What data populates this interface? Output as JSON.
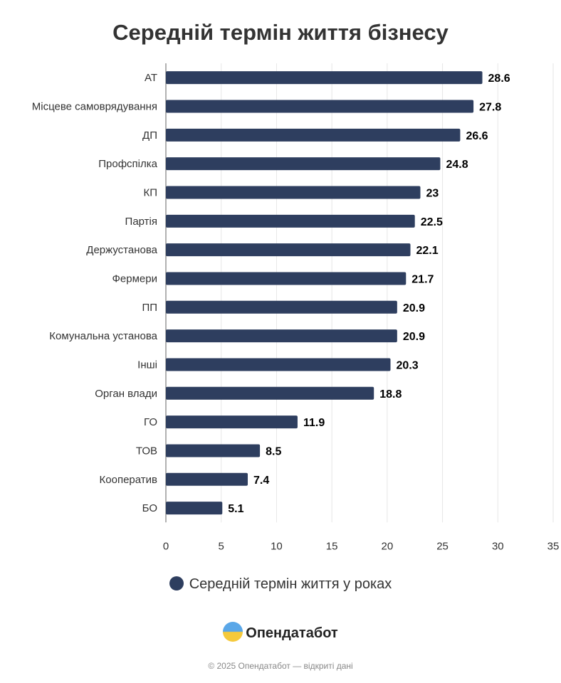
{
  "chart_data": {
    "type": "bar",
    "orientation": "horizontal",
    "title": "Середній термін життя бізнесу",
    "categories": [
      "АТ",
      "Місцеве самоврядування",
      "ДП",
      "Профспілка",
      "КП",
      "Партія",
      "Держустанова",
      "Фермери",
      "ПП",
      "Комунальна установа",
      "Інші",
      "Орган влади",
      "ГО",
      "ТОВ",
      "Кооператив",
      "БО"
    ],
    "series": [
      {
        "name": "Середній термін життя у роках",
        "values": [
          28.6,
          27.8,
          26.6,
          24.8,
          23,
          22.5,
          22.1,
          21.7,
          20.9,
          20.9,
          20.3,
          18.8,
          11.9,
          8.5,
          7.4,
          5.1
        ]
      }
    ],
    "xlim": [
      0,
      35
    ],
    "xticks": [
      0,
      5,
      10,
      15,
      20,
      25,
      30,
      35
    ],
    "grid": true,
    "legend": "bottom",
    "bar_color": "#2e3e5f"
  },
  "brand": "Опендатабот",
  "footer": "© 2025 Опендатабот — відкриті дані"
}
